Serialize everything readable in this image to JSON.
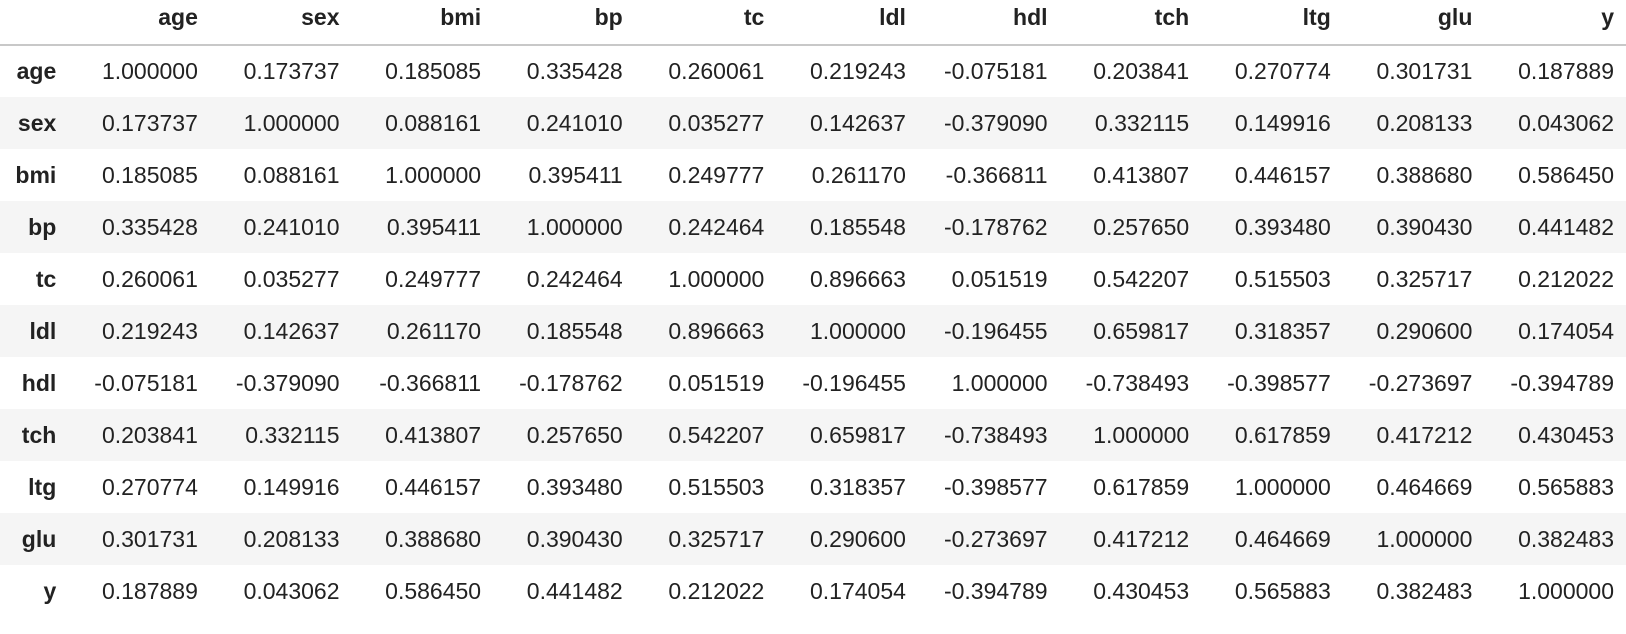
{
  "table": {
    "corner_label": "",
    "columns": [
      "age",
      "sex",
      "bmi",
      "bp",
      "tc",
      "ldl",
      "hdl",
      "tch",
      "ltg",
      "glu",
      "y"
    ],
    "rows": [
      {
        "label": "age",
        "values": [
          "1.000000",
          "0.173737",
          "0.185085",
          "0.335428",
          "0.260061",
          "0.219243",
          "-0.075181",
          "0.203841",
          "0.270774",
          "0.301731",
          "0.187889"
        ]
      },
      {
        "label": "sex",
        "values": [
          "0.173737",
          "1.000000",
          "0.088161",
          "0.241010",
          "0.035277",
          "0.142637",
          "-0.379090",
          "0.332115",
          "0.149916",
          "0.208133",
          "0.043062"
        ]
      },
      {
        "label": "bmi",
        "values": [
          "0.185085",
          "0.088161",
          "1.000000",
          "0.395411",
          "0.249777",
          "0.261170",
          "-0.366811",
          "0.413807",
          "0.446157",
          "0.388680",
          "0.586450"
        ]
      },
      {
        "label": "bp",
        "values": [
          "0.335428",
          "0.241010",
          "0.395411",
          "1.000000",
          "0.242464",
          "0.185548",
          "-0.178762",
          "0.257650",
          "0.393480",
          "0.390430",
          "0.441482"
        ]
      },
      {
        "label": "tc",
        "values": [
          "0.260061",
          "0.035277",
          "0.249777",
          "0.242464",
          "1.000000",
          "0.896663",
          "0.051519",
          "0.542207",
          "0.515503",
          "0.325717",
          "0.212022"
        ]
      },
      {
        "label": "ldl",
        "values": [
          "0.219243",
          "0.142637",
          "0.261170",
          "0.185548",
          "0.896663",
          "1.000000",
          "-0.196455",
          "0.659817",
          "0.318357",
          "0.290600",
          "0.174054"
        ]
      },
      {
        "label": "hdl",
        "values": [
          "-0.075181",
          "-0.379090",
          "-0.366811",
          "-0.178762",
          "0.051519",
          "-0.196455",
          "1.000000",
          "-0.738493",
          "-0.398577",
          "-0.273697",
          "-0.394789"
        ]
      },
      {
        "label": "tch",
        "values": [
          "0.203841",
          "0.332115",
          "0.413807",
          "0.257650",
          "0.542207",
          "0.659817",
          "-0.738493",
          "1.000000",
          "0.617859",
          "0.417212",
          "0.430453"
        ]
      },
      {
        "label": "ltg",
        "values": [
          "0.270774",
          "0.149916",
          "0.446157",
          "0.393480",
          "0.515503",
          "0.318357",
          "-0.398577",
          "0.617859",
          "1.000000",
          "0.464669",
          "0.565883"
        ]
      },
      {
        "label": "glu",
        "values": [
          "0.301731",
          "0.208133",
          "0.388680",
          "0.390430",
          "0.325717",
          "0.290600",
          "-0.273697",
          "0.417212",
          "0.464669",
          "1.000000",
          "0.382483"
        ]
      },
      {
        "label": "y",
        "values": [
          "0.187889",
          "0.043062",
          "0.586450",
          "0.441482",
          "0.212022",
          "0.174054",
          "-0.394789",
          "0.430453",
          "0.565883",
          "0.382483",
          "1.000000"
        ]
      }
    ]
  },
  "colors": {
    "text": "#222222",
    "striped_row": "#f5f5f5",
    "header_rule": "#c8c8c8"
  }
}
